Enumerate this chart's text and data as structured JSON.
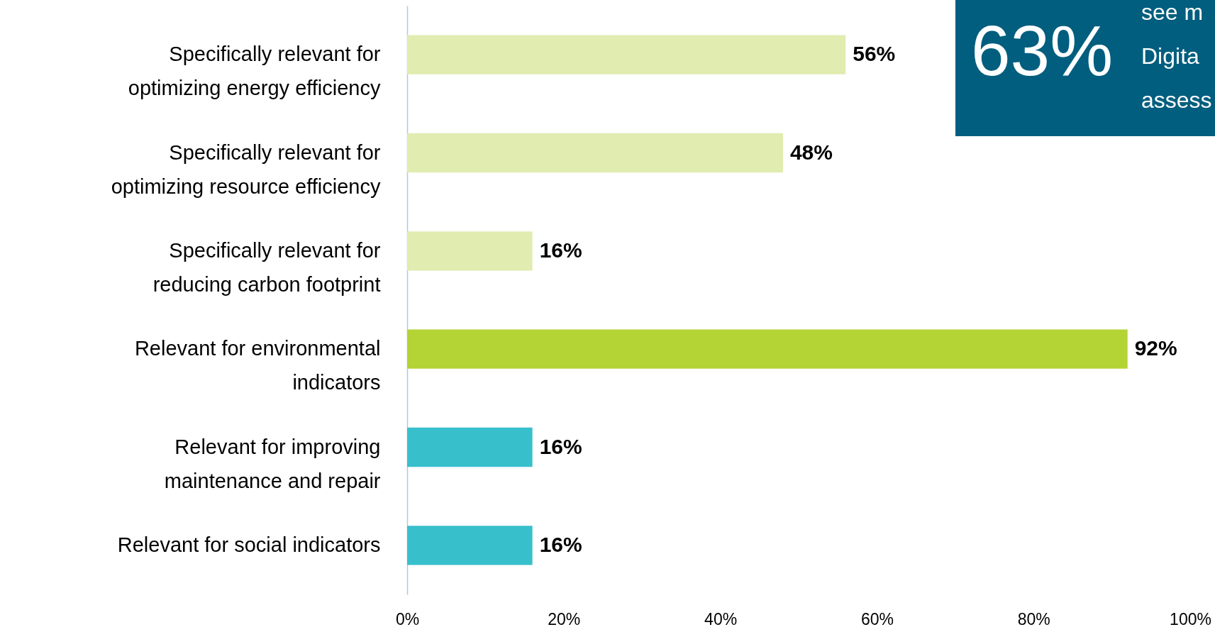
{
  "chart_data": {
    "type": "bar",
    "orientation": "horizontal",
    "categories": [
      "Specifically relevant for optimizing energy efficiency",
      "Specifically relevant for optimizing resource efficiency",
      "Specifically relevant for reducing carbon footprint",
      "Relevant for environmental indicators",
      "Relevant for improving maintenance and repair",
      "Relevant for social indicators"
    ],
    "values": [
      56,
      48,
      16,
      92,
      16,
      16
    ],
    "colors": [
      "#e0ecb0",
      "#e0ecb0",
      "#e0ecb0",
      "#b4d334",
      "#38bfcc",
      "#38bfcc"
    ],
    "value_labels": [
      "56%",
      "48%",
      "16%",
      "92%",
      "16%",
      "16%"
    ],
    "xlim": [
      0,
      100
    ],
    "xticks": [
      {
        "value": 0,
        "label": "0%"
      },
      {
        "value": 20,
        "label": "20%"
      },
      {
        "value": 40,
        "label": "40%"
      },
      {
        "value": 60,
        "label": "60%"
      },
      {
        "value": 80,
        "label": "80%"
      },
      {
        "value": 100,
        "label": "100%"
      }
    ],
    "grid": false,
    "annotations": [
      "63%",
      "see m",
      "Digita",
      "assess"
    ]
  }
}
